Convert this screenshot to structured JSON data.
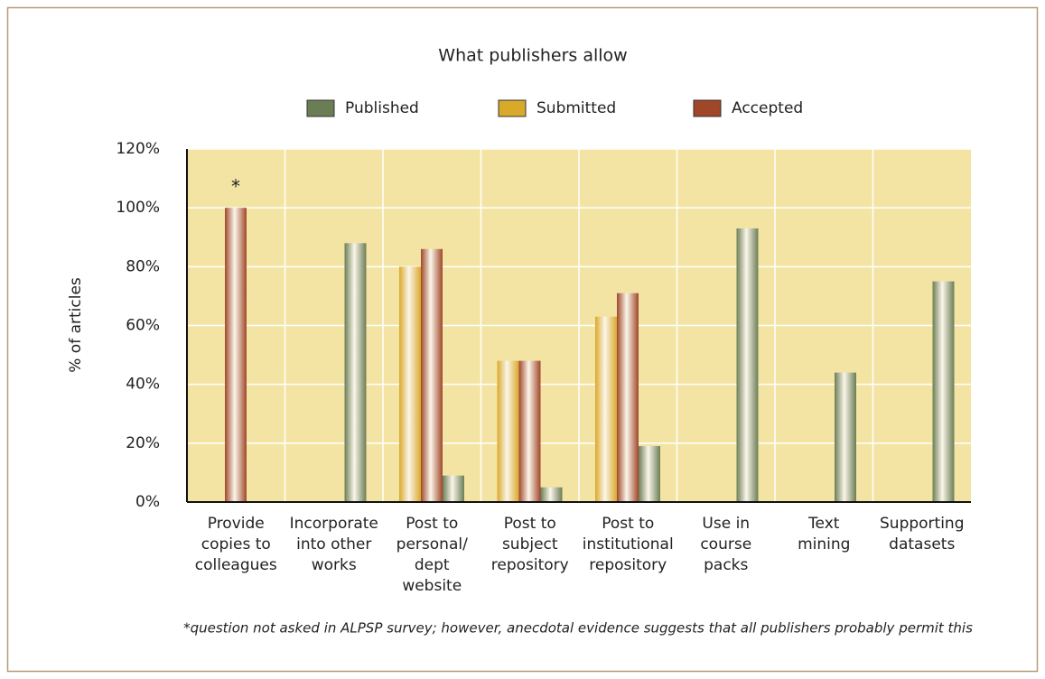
{
  "chart_data": {
    "type": "bar",
    "title": "What publishers allow",
    "y_label": "% of articles",
    "categories": [
      [
        "Provide",
        "copies to",
        "colleagues"
      ],
      [
        "Incorporate",
        "into other",
        "works"
      ],
      [
        "Post to",
        "personal/",
        "dept",
        "website"
      ],
      [
        "Post to",
        "subject",
        "repository"
      ],
      [
        "Post to",
        "institutional",
        "repository"
      ],
      [
        "Use in",
        "course",
        "packs"
      ],
      [
        "Text",
        "mining"
      ],
      [
        "Supporting",
        "datasets"
      ]
    ],
    "series": [
      {
        "name": "Published",
        "color": "#6b7d55",
        "values": [
          null,
          88,
          9,
          5,
          19,
          93,
          44,
          75
        ]
      },
      {
        "name": "Submitted",
        "color": "#d9a92a",
        "values": [
          null,
          null,
          80,
          48,
          63,
          null,
          null,
          null
        ]
      },
      {
        "name": "Accepted",
        "color": "#a0472a",
        "values": [
          100,
          null,
          86,
          48,
          71,
          null,
          null,
          null
        ]
      }
    ],
    "bar_order": [
      "Submitted",
      "Accepted",
      "Published"
    ],
    "ylim": [
      0,
      120
    ],
    "yticks": [
      {
        "value": 0,
        "label": "0%"
      },
      {
        "value": 20,
        "label": "20%"
      },
      {
        "value": 40,
        "label": "40%"
      },
      {
        "value": 60,
        "label": "60%"
      },
      {
        "value": 80,
        "label": "80%"
      },
      {
        "value": 100,
        "label": "100%"
      },
      {
        "value": 120,
        "label": "120%"
      }
    ],
    "grid": true,
    "background": "#f3e4a4",
    "annotation": "*",
    "footnote": "*question not asked in ALPSP survey; however, anecdotal evidence suggests that all publishers probably permit this"
  }
}
